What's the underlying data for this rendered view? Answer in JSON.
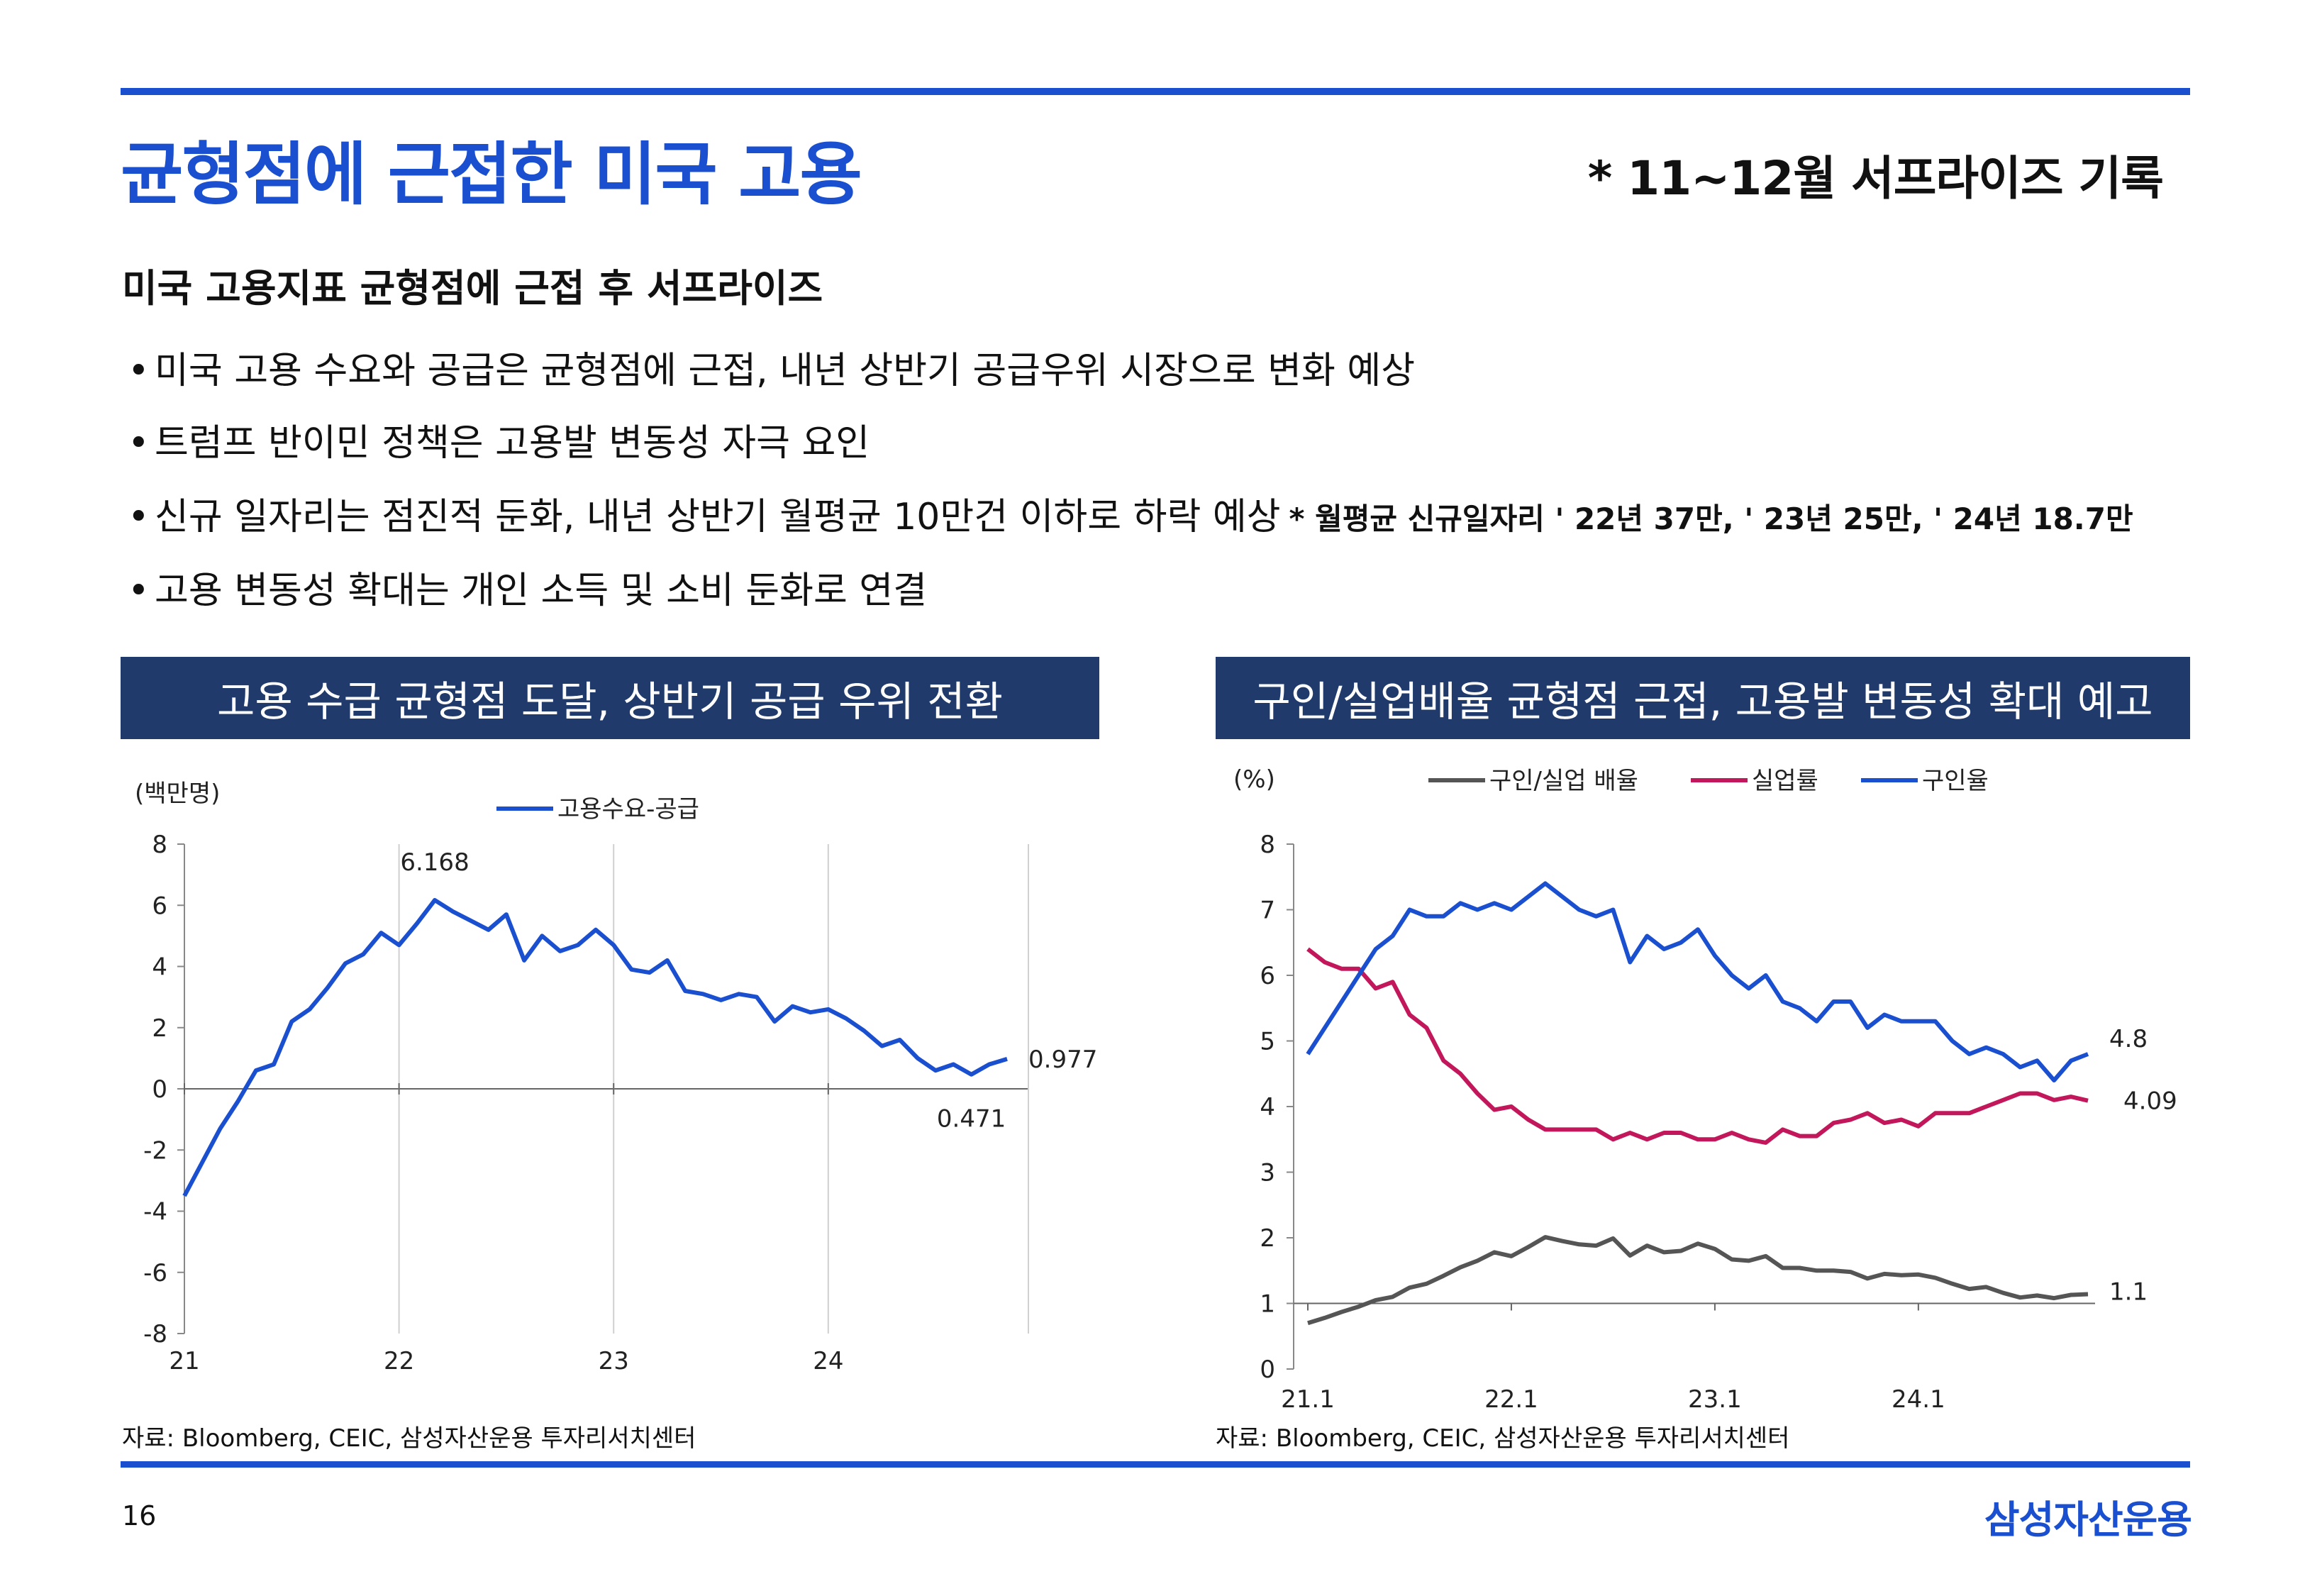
{
  "header": {
    "title": "균형점에 근접한 미국 고용",
    "note": "* 11~12월 서프라이즈 기록"
  },
  "section": {
    "heading": "미국 고용지표 균형점에 근접 후 서프라이즈",
    "bullets": [
      "미국 고용 수요와 공급은 균형점에 근접, 내년 상반기 공급우위 시장으로 변화 예상",
      "트럼프 반이민 정책은 고용발 변동성 자극 요인",
      "신규 일자리는 점진적 둔화, 내년 상반기 월평균 10만건 이하로 하락 예상",
      "고용 변동성 확대는 개인 소득 및 소비 둔화로 연결"
    ],
    "bullet3_note": "* 월평균 신규일자리 ' 22년 37만, ' 23년 25만, ' 24년 18.7만"
  },
  "chart_data": [
    {
      "type": "line",
      "banner": "고용 수급 균형점 도달, 상반기 공급 우위 전환",
      "ylabel": "(백만명)",
      "ylim": [
        -8,
        8
      ],
      "yticks": [
        8,
        6,
        4,
        2,
        0,
        -2,
        -4,
        -6,
        -8
      ],
      "xticks": [
        "21",
        "22",
        "23",
        "24"
      ],
      "series": [
        {
          "name": "고용수요-공급",
          "color": "#1a4fd0",
          "values": [
            -3.5,
            -2.4,
            -1.3,
            -0.4,
            0.6,
            0.8,
            2.2,
            2.6,
            3.3,
            4.1,
            4.4,
            5.1,
            4.7,
            5.4,
            6.168,
            5.8,
            5.5,
            5.2,
            5.7,
            4.2,
            5.0,
            4.5,
            4.7,
            5.2,
            4.7,
            3.9,
            3.8,
            4.2,
            3.2,
            3.1,
            2.9,
            3.1,
            3.0,
            2.2,
            2.7,
            2.5,
            2.6,
            2.3,
            1.9,
            1.4,
            1.6,
            1.0,
            0.6,
            0.8,
            0.471,
            0.8,
            0.977
          ]
        }
      ],
      "annotations": [
        {
          "text": "6.168",
          "index": 14
        },
        {
          "text": "0.471",
          "index": 44
        },
        {
          "text": "0.977",
          "index": 46
        }
      ]
    },
    {
      "type": "line",
      "banner": "구인/실업배율 균형점 근접, 고용발 변동성 확대 예고",
      "ylabel": "(%)",
      "ylim": [
        0,
        8
      ],
      "yticks": [
        8,
        7,
        6,
        5,
        4,
        3,
        2,
        1,
        0
      ],
      "xticks": [
        "21.1",
        "22.1",
        "23.1",
        "24.1"
      ],
      "series": [
        {
          "name": "구인/실업 배율",
          "color": "#555555",
          "values": [
            0.7,
            0.78,
            0.87,
            0.95,
            1.05,
            1.1,
            1.24,
            1.3,
            1.42,
            1.55,
            1.65,
            1.78,
            1.72,
            1.86,
            2.01,
            1.95,
            1.9,
            1.88,
            1.99,
            1.73,
            1.88,
            1.78,
            1.8,
            1.91,
            1.83,
            1.67,
            1.65,
            1.72,
            1.54,
            1.54,
            1.5,
            1.5,
            1.48,
            1.38,
            1.45,
            1.43,
            1.44,
            1.39,
            1.3,
            1.22,
            1.25,
            1.16,
            1.09,
            1.12,
            1.08,
            1.13,
            1.14
          ]
        },
        {
          "name": "실업률",
          "color": "#c2185b",
          "values": [
            6.4,
            6.2,
            6.1,
            6.1,
            5.8,
            5.9,
            5.4,
            5.2,
            4.7,
            4.5,
            4.2,
            3.95,
            4.0,
            3.8,
            3.65,
            3.65,
            3.65,
            3.65,
            3.5,
            3.6,
            3.5,
            3.6,
            3.6,
            3.5,
            3.5,
            3.6,
            3.5,
            3.45,
            3.65,
            3.55,
            3.55,
            3.75,
            3.8,
            3.9,
            3.75,
            3.8,
            3.7,
            3.9,
            3.9,
            3.9,
            4.0,
            4.1,
            4.2,
            4.2,
            4.1,
            4.15,
            4.09
          ]
        },
        {
          "name": "구인율",
          "color": "#1a4fd0",
          "values": [
            4.8,
            5.2,
            5.6,
            6.0,
            6.4,
            6.6,
            7.0,
            6.9,
            6.9,
            7.1,
            7.0,
            7.1,
            7.0,
            7.2,
            7.4,
            7.2,
            7.0,
            6.9,
            7.0,
            6.2,
            6.6,
            6.4,
            6.5,
            6.7,
            6.3,
            6.0,
            5.8,
            6.0,
            5.6,
            5.5,
            5.3,
            5.6,
            5.6,
            5.2,
            5.4,
            5.3,
            5.3,
            5.3,
            5.0,
            4.8,
            4.9,
            4.8,
            4.6,
            4.7,
            4.4,
            4.7,
            4.8
          ]
        }
      ],
      "annotations": [
        {
          "text": "4.8",
          "series": 2
        },
        {
          "text": "4.09",
          "series": 1
        },
        {
          "text": "1.1",
          "series": 0
        }
      ]
    }
  ],
  "footer": {
    "source_left": "자료: Bloomberg, CEIC, 삼성자산운용 투자리서치센터",
    "source_right": "자료: Bloomberg, CEIC, 삼성자산운용 투자리서치센터",
    "page_number": "16",
    "company": "삼성자산운용"
  },
  "colors": {
    "accent": "#1a4fd0",
    "banner": "#1f3a6b"
  }
}
